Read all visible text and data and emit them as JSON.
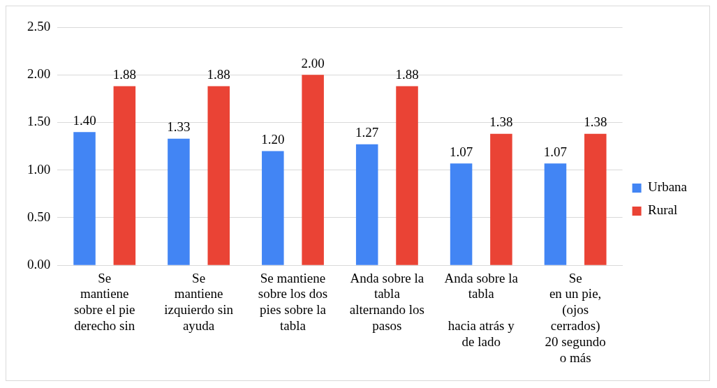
{
  "chart_data": {
    "type": "bar",
    "categories": [
      "Se\nmantiene\nsobre el pie\nderecho sin",
      "Se\nmantiene\nizquierdo sin\nayuda",
      "Se mantiene\nsobre los dos\npies sobre la\ntabla",
      "Anda sobre la\ntabla\nalternando los\npasos",
      "Anda sobre la\ntabla\n\nhacia atrás y\nde lado",
      "Se\nen un pie,\n(ojos\ncerrados)\n20 segundo\no más"
    ],
    "series": [
      {
        "name": "Urbana",
        "color": "#4285f4",
        "values": [
          1.4,
          1.33,
          1.2,
          1.27,
          1.07,
          1.07
        ],
        "value_labels": [
          "1.40",
          "1.33",
          "1.20",
          "1.27",
          "1.07",
          "1.07"
        ]
      },
      {
        "name": "Rural",
        "color": "#ea4335",
        "values": [
          1.88,
          1.88,
          2.0,
          1.88,
          1.38,
          1.38
        ],
        "value_labels": [
          "1.88",
          "1.88",
          "2.00",
          "1.88",
          "1.38",
          "1.38"
        ]
      }
    ],
    "ylim": [
      0,
      2.5
    ],
    "yticks": [
      {
        "value": 0,
        "label": "0.00"
      },
      {
        "value": 0.5,
        "label": "0.50"
      },
      {
        "value": 1,
        "label": "1.00"
      },
      {
        "value": 1.5,
        "label": "1.50"
      },
      {
        "value": 2,
        "label": "2.00"
      },
      {
        "value": 2.5,
        "label": "2.50"
      }
    ],
    "grid": "y",
    "legend": "right"
  }
}
